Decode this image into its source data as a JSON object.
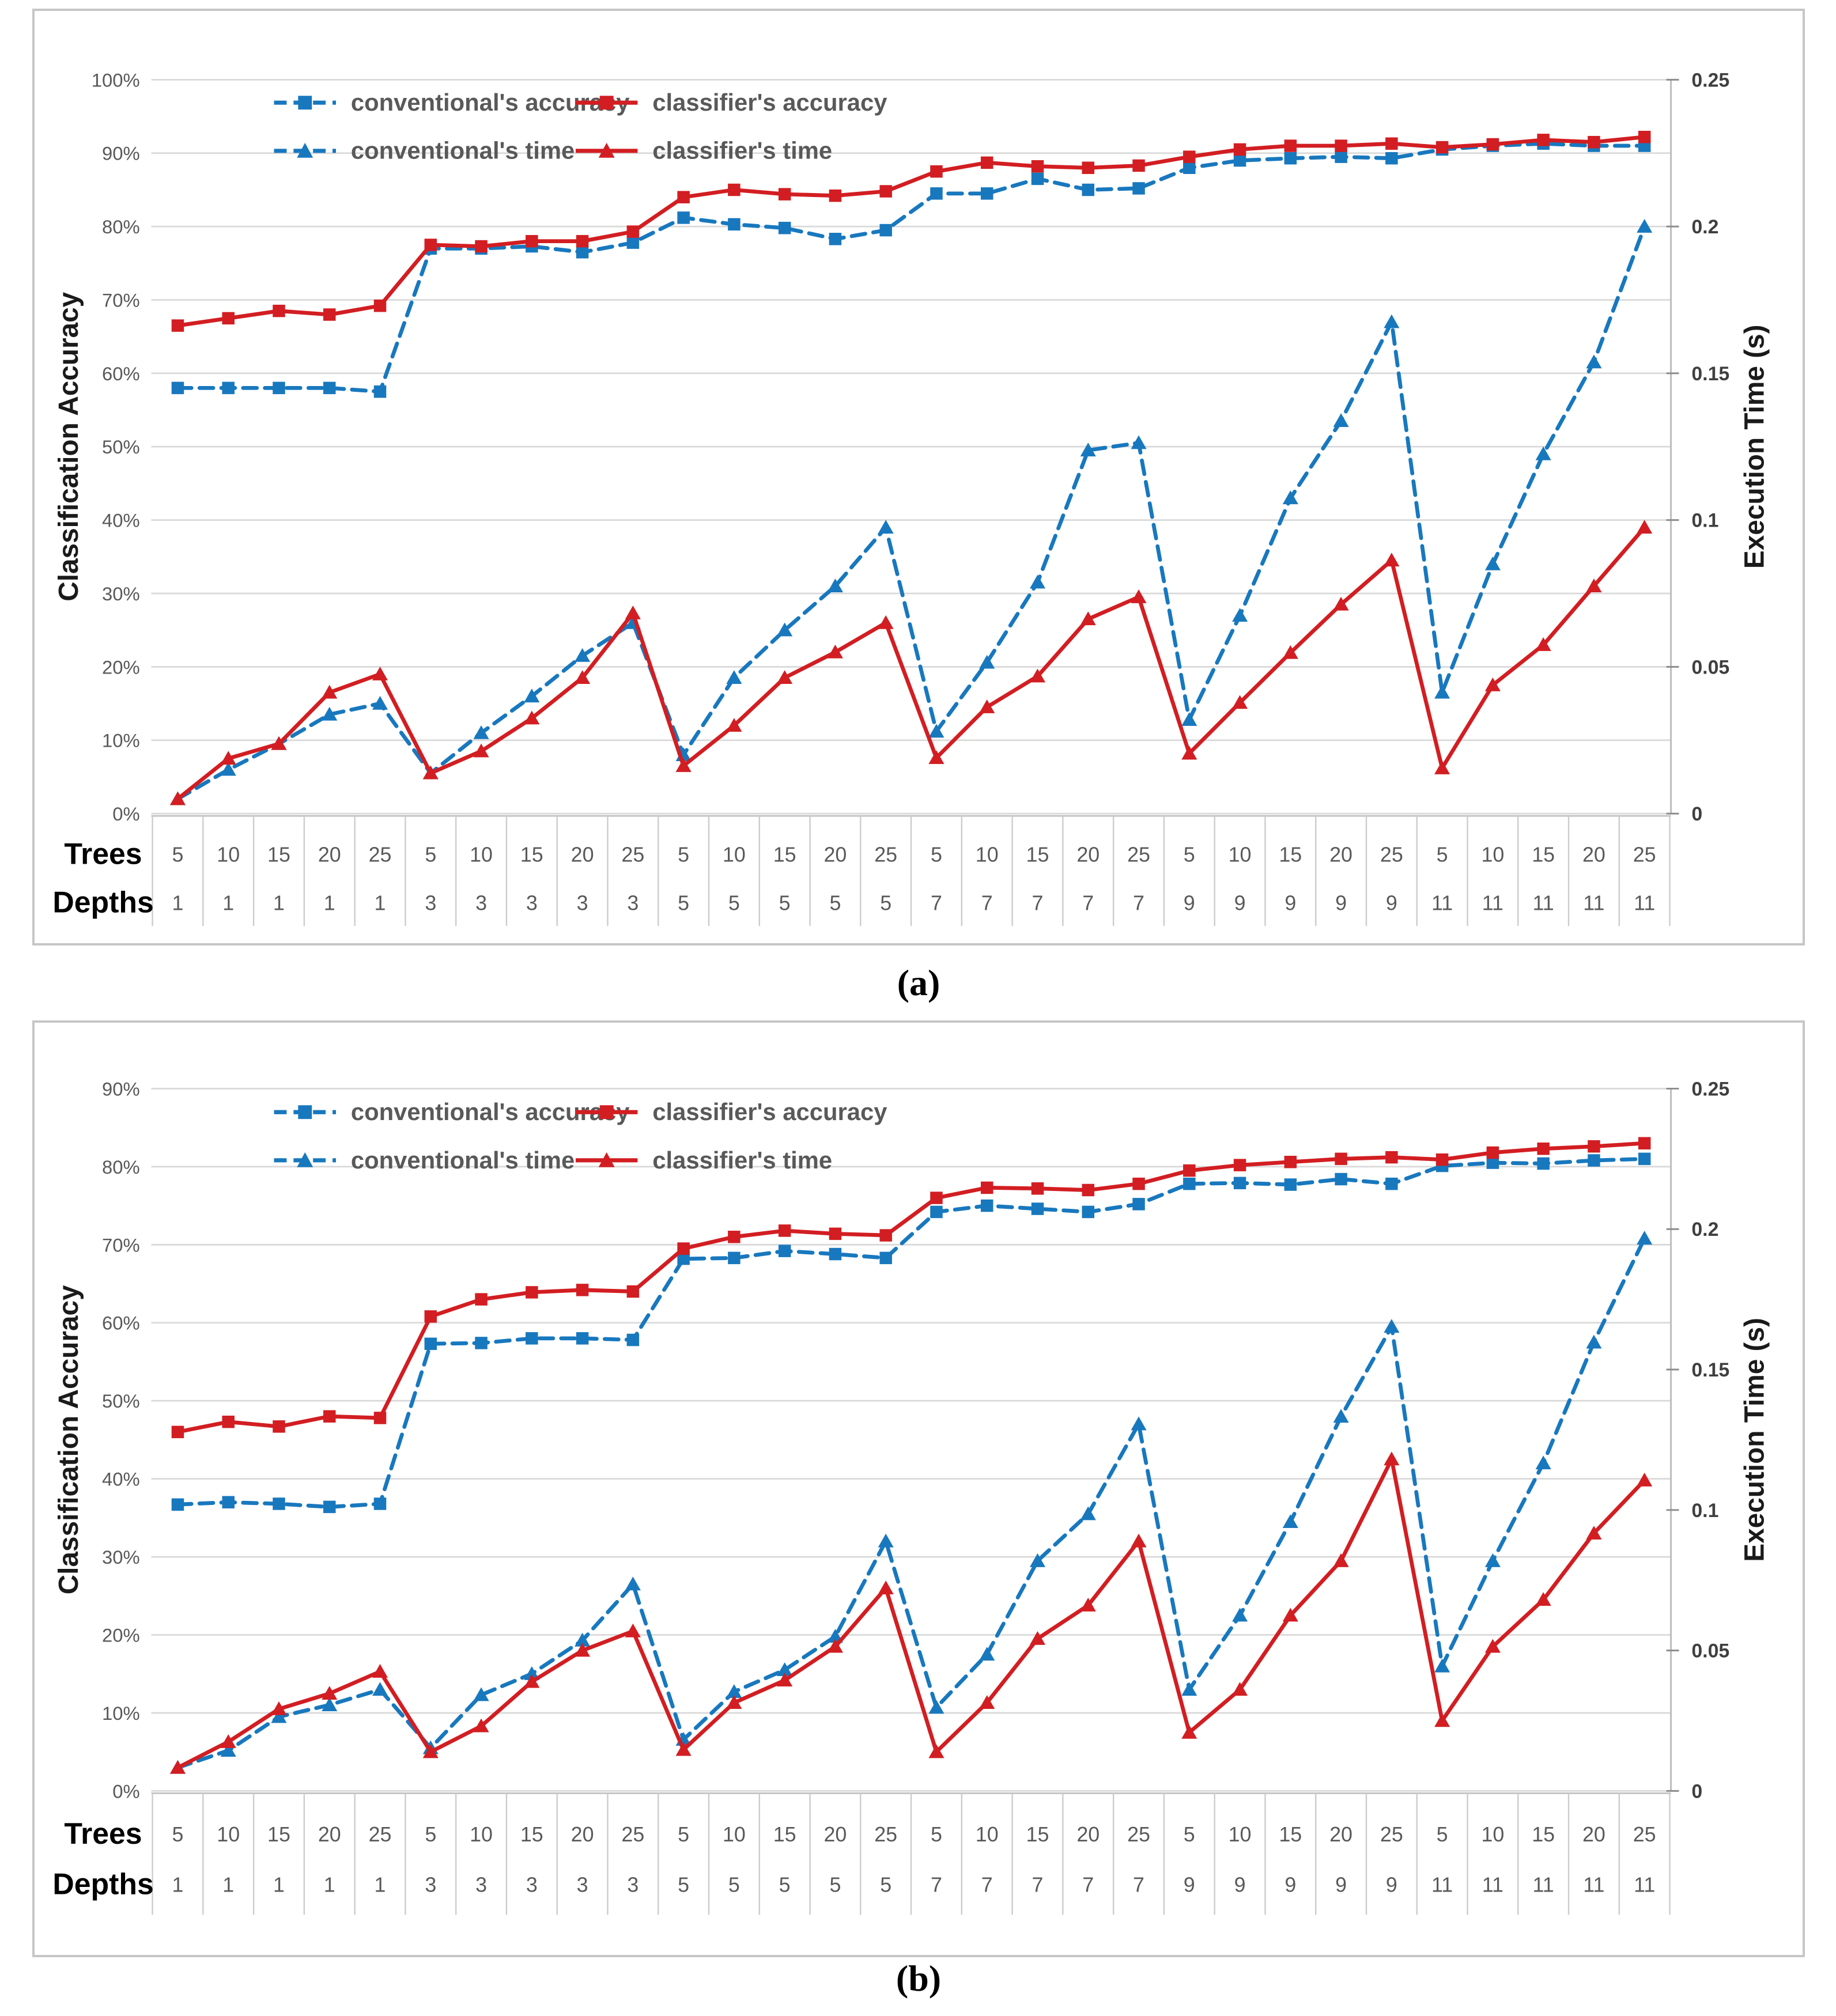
{
  "figure": {
    "captions": {
      "a": "(a)",
      "b": "(b)"
    }
  },
  "colors": {
    "conventional_blue": "#1878BE",
    "classifier_red": "#D21E22",
    "gridline": "#D9D9D9",
    "axis_line": "#BFBFBF",
    "text_gray": "#595959"
  },
  "chart_data": [
    {
      "id": "a",
      "type": "line",
      "left_axis": {
        "title": "Classification Accuracy",
        "min": 0,
        "max": 100,
        "tick_step": 10,
        "tick_labels": [
          "100%",
          "90%",
          "80%",
          "70%",
          "60%",
          "50%",
          "40%",
          "30%",
          "20%",
          "10%",
          "0%"
        ]
      },
      "right_axis": {
        "title": "Execution Time (s)",
        "min": 0,
        "max": 0.25,
        "tick_values": [
          0.25,
          0.2,
          0.15,
          0.1,
          0.05,
          0
        ],
        "tick_labels": [
          "0.25",
          "0.2",
          "0.15",
          "0.1",
          "0.05",
          "0"
        ]
      },
      "x_axis": {
        "row1_label": "Trees",
        "row2_label": "Depths",
        "trees": [
          5,
          10,
          15,
          20,
          25,
          5,
          10,
          15,
          20,
          25,
          5,
          10,
          15,
          20,
          25,
          5,
          10,
          15,
          20,
          25,
          5,
          10,
          15,
          20,
          25,
          5,
          10,
          15,
          20,
          25
        ],
        "depths": [
          1,
          1,
          1,
          1,
          1,
          3,
          3,
          3,
          3,
          3,
          5,
          5,
          5,
          5,
          5,
          7,
          7,
          7,
          7,
          7,
          9,
          9,
          9,
          9,
          9,
          11,
          11,
          11,
          11,
          11
        ]
      },
      "series": [
        {
          "name": "conventional's accuracy",
          "axis": "left",
          "unit": "percent",
          "color": "#1878BE",
          "style": "dashed",
          "marker": "square",
          "values": [
            58,
            58,
            58,
            58,
            57.5,
            77,
            77,
            77.3,
            76.5,
            77.8,
            81.2,
            80.3,
            79.8,
            78.3,
            79.5,
            84.5,
            84.5,
            86.5,
            85,
            85.2,
            88,
            89,
            89.3,
            89.5,
            89.3,
            90.5,
            91,
            91.3,
            91,
            91
          ]
        },
        {
          "name": "classifier's accuracy",
          "axis": "left",
          "unit": "percent",
          "color": "#D21E22",
          "style": "solid",
          "marker": "square",
          "values": [
            66.5,
            67.5,
            68.5,
            68,
            69.2,
            77.5,
            77.3,
            78,
            78,
            79.3,
            84,
            85,
            84.4,
            84.2,
            84.8,
            87.5,
            88.7,
            88.2,
            88,
            88.3,
            89.5,
            90.5,
            91,
            91,
            91.3,
            90.8,
            91.2,
            91.8,
            91.5,
            92.2
          ]
        },
        {
          "name": "conventional's time",
          "axis": "right",
          "unit": "seconds",
          "color": "#1878BE",
          "style": "dashed",
          "marker": "triangle",
          "values": [
            0.005,
            0.015,
            0.0238,
            0.0338,
            0.0375,
            0.0138,
            0.0275,
            0.04,
            0.0538,
            0.065,
            0.02,
            0.0463,
            0.0625,
            0.0775,
            0.0975,
            0.028,
            0.0515,
            0.0788,
            0.1238,
            0.1263,
            0.032,
            0.0675,
            0.1075,
            0.1338,
            0.1675,
            0.0413,
            0.085,
            0.1225,
            0.1538,
            0.2
          ]
        },
        {
          "name": "classifier's time",
          "axis": "right",
          "unit": "seconds",
          "color": "#D21E22",
          "style": "solid",
          "marker": "triangle",
          "values": [
            0.005,
            0.0188,
            0.0238,
            0.0413,
            0.0475,
            0.0138,
            0.0213,
            0.0325,
            0.0463,
            0.0683,
            0.0163,
            0.03,
            0.0463,
            0.055,
            0.065,
            0.019,
            0.0363,
            0.0468,
            0.0663,
            0.0738,
            0.0205,
            0.0378,
            0.0548,
            0.0713,
            0.0863,
            0.0155,
            0.0438,
            0.0575,
            0.0775,
            0.0975
          ]
        }
      ],
      "legend": {
        "position": "inside-top-left",
        "rows": 2,
        "cols": 2,
        "order": [
          "conventional's accuracy",
          "classifier's accuracy",
          "conventional's time",
          "classifier's time"
        ]
      }
    },
    {
      "id": "b",
      "type": "line",
      "left_axis": {
        "title": "Classification Accuracy",
        "min": 0,
        "max": 90,
        "tick_step": 10,
        "tick_labels": [
          "90%",
          "80%",
          "70%",
          "60%",
          "50%",
          "40%",
          "30%",
          "20%",
          "10%",
          "0%"
        ]
      },
      "right_axis": {
        "title": "Execution Time (s)",
        "min": 0,
        "max": 0.25,
        "tick_values": [
          0.25,
          0.2,
          0.15,
          0.1,
          0.05,
          0
        ],
        "tick_labels": [
          "0.25",
          "0.2",
          "0.15",
          "0.1",
          "0.05",
          "0"
        ]
      },
      "x_axis": {
        "row1_label": "Trees",
        "row2_label": "Depths",
        "trees": [
          5,
          10,
          15,
          20,
          25,
          5,
          10,
          15,
          20,
          25,
          5,
          10,
          15,
          20,
          25,
          5,
          10,
          15,
          20,
          25,
          5,
          10,
          15,
          20,
          25,
          5,
          10,
          15,
          20,
          25
        ],
        "depths": [
          1,
          1,
          1,
          1,
          1,
          3,
          3,
          3,
          3,
          3,
          5,
          5,
          5,
          5,
          5,
          7,
          7,
          7,
          7,
          7,
          9,
          9,
          9,
          9,
          9,
          11,
          11,
          11,
          11,
          11
        ]
      },
      "series": [
        {
          "name": "conventional's accuracy",
          "axis": "left",
          "unit": "percent",
          "color": "#1878BE",
          "style": "dashed",
          "marker": "square",
          "values": [
            36.7,
            37,
            36.8,
            36.4,
            36.8,
            57.3,
            57.4,
            58,
            58,
            57.8,
            68.2,
            68.3,
            69.2,
            68.8,
            68.3,
            74.2,
            75,
            74.6,
            74.2,
            75.2,
            77.8,
            77.9,
            77.7,
            78.4,
            77.8,
            80.1,
            80.5,
            80.4,
            80.8,
            81
          ]
        },
        {
          "name": "classifier's accuracy",
          "axis": "left",
          "unit": "percent",
          "color": "#D21E22",
          "style": "solid",
          "marker": "square",
          "values": [
            46,
            47.3,
            46.7,
            48,
            47.8,
            60.8,
            63,
            63.9,
            64.2,
            64,
            69.5,
            71,
            71.8,
            71.4,
            71.2,
            76,
            77.3,
            77.2,
            77,
            77.8,
            79.5,
            80.2,
            80.6,
            81,
            81.2,
            80.9,
            81.8,
            82.3,
            82.6,
            83
          ]
        },
        {
          "name": "conventional's time",
          "axis": "right",
          "unit": "seconds",
          "color": "#1878BE",
          "style": "dashed",
          "marker": "triangle",
          "values": [
            0.0083,
            0.0144,
            0.0264,
            0.0306,
            0.0361,
            0.0153,
            0.0342,
            0.0417,
            0.0536,
            0.0736,
            0.0183,
            0.0353,
            0.0431,
            0.055,
            0.0889,
            0.0297,
            0.0486,
            0.0819,
            0.0986,
            0.1306,
            0.0361,
            0.0625,
            0.0958,
            0.1333,
            0.1653,
            0.0444,
            0.0819,
            0.1167,
            0.1597,
            0.1967
          ]
        },
        {
          "name": "classifier's time",
          "axis": "right",
          "unit": "seconds",
          "color": "#D21E22",
          "style": "solid",
          "marker": "triangle",
          "values": [
            0.0083,
            0.0175,
            0.0292,
            0.0347,
            0.0425,
            0.0139,
            0.0231,
            0.0389,
            0.05,
            0.0569,
            0.0147,
            0.0314,
            0.0394,
            0.0514,
            0.0722,
            0.0139,
            0.0314,
            0.0542,
            0.0661,
            0.0889,
            0.0208,
            0.0361,
            0.0625,
            0.0819,
            0.1181,
            0.025,
            0.0514,
            0.0681,
            0.0917,
            0.1106
          ]
        }
      ],
      "legend": {
        "position": "inside-top-left",
        "rows": 2,
        "cols": 2,
        "order": [
          "conventional's accuracy",
          "classifier's accuracy",
          "conventional's time",
          "classifier's time"
        ]
      }
    }
  ]
}
